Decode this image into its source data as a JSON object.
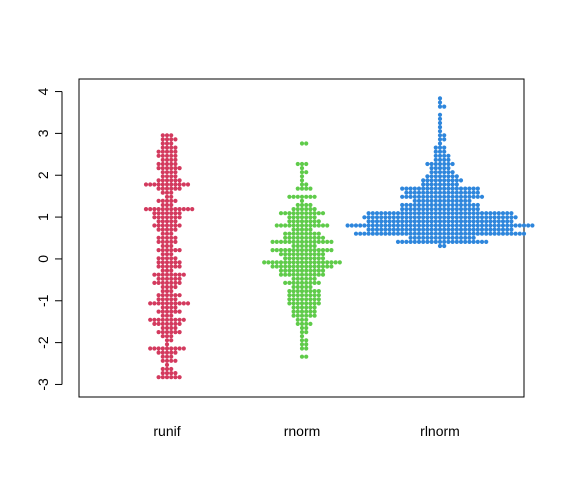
{
  "chart_data": {
    "type": "scatter",
    "subtype": "beeswarm",
    "title": "",
    "xlabel": "",
    "ylabel": "",
    "ylim": [
      -3.3,
      4.3
    ],
    "yticks": [
      -3,
      -2,
      -1,
      0,
      1,
      2,
      3,
      4
    ],
    "grid": false,
    "legend": "none",
    "categories": [
      "runif",
      "rnorm",
      "rlnorm"
    ],
    "series": [
      {
        "color": "#d33a5e",
        "distribution": "uniform",
        "range": [
          -2.9,
          2.95
        ],
        "count": 300
      },
      {
        "color": "#5fcb4a",
        "distribution": "normal",
        "mean": 0,
        "sd": 1,
        "range": [
          -2.7,
          2.8
        ],
        "count": 300
      },
      {
        "color": "#2e86dc",
        "distribution": "lognormal",
        "range": [
          0.33,
          4.1
        ],
        "count": 450
      }
    ]
  }
}
